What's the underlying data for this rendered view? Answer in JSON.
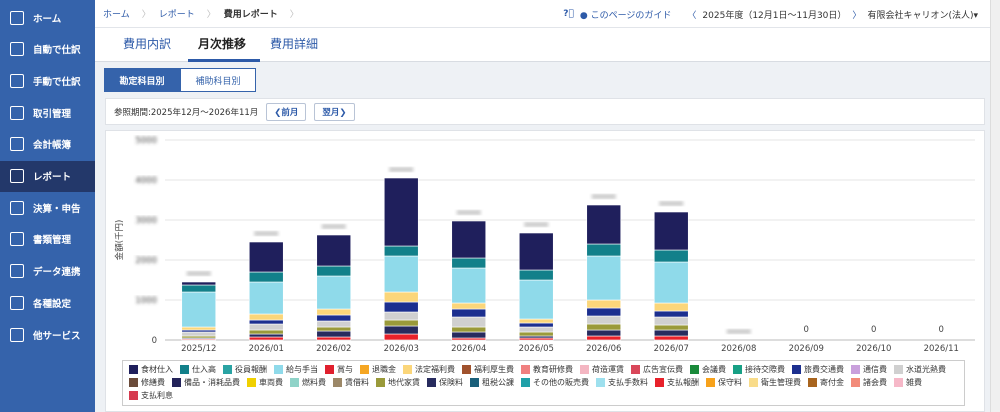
{
  "sidebar": {
    "items": [
      "ホーム",
      "自動で仕訳",
      "手動で仕訳",
      "取引管理",
      "会計帳簿",
      "レポート",
      "決算・申告",
      "書類管理",
      "データ連携",
      "各種設定",
      "他サービス"
    ],
    "active": 5
  },
  "breadcrumb": [
    "ホーム",
    "レポート",
    "費用レポート"
  ],
  "header": {
    "guide": "このページのガイド",
    "period": "2025年度（12月1日〜11月30日）",
    "company": "有限会社キャリオン(法人)"
  },
  "tabs": {
    "items": [
      "費用内訳",
      "月次推移",
      "費用詳細"
    ],
    "active": 1
  },
  "subtabs": {
    "items": [
      "勘定科目別",
      "補助科目別"
    ],
    "active": 0
  },
  "period_bar": {
    "label": "参照期間:2025年12月〜2026年11月",
    "prev": "前月",
    "next": "翌月"
  },
  "chart_data": {
    "type": "bar",
    "stacked": true,
    "y_label": "金額(千円)",
    "categories": [
      "2025/12",
      "2026/01",
      "2026/02",
      "2026/03",
      "2026/04",
      "2026/05",
      "2026/06",
      "2026/07",
      "2026/08",
      "2026/09",
      "2026/10",
      "2026/11"
    ],
    "ylim": [
      0,
      5000
    ],
    "yticks": [
      0,
      1000,
      2000,
      3000,
      4000,
      5000
    ],
    "grid": true,
    "total_labels": [
      null,
      null,
      null,
      null,
      null,
      null,
      null,
      null,
      null,
      0,
      0,
      0
    ],
    "series": [
      {
        "name": "食材仕入",
        "color": "#1f1f5c",
        "values": [
          75,
          750,
          775,
          1700,
          925,
          925,
          975,
          950,
          0,
          0,
          0,
          0
        ]
      },
      {
        "name": "仕入高",
        "color": "#12808a",
        "values": [
          175,
          250,
          250,
          250,
          250,
          250,
          300,
          300,
          0,
          0,
          0,
          0
        ]
      },
      {
        "name": "役員報酬",
        "color": "#2aa3a3",
        "values": [
          0,
          0,
          0,
          0,
          0,
          0,
          0,
          0,
          0,
          0,
          0,
          0
        ]
      },
      {
        "name": "給与手当",
        "color": "#8fdaea",
        "values": [
          875,
          800,
          825,
          900,
          875,
          975,
          1100,
          1025,
          0,
          0,
          0,
          0
        ]
      },
      {
        "name": "賞与",
        "color": "#e0202e",
        "values": [
          0,
          0,
          0,
          0,
          0,
          0,
          0,
          0,
          0,
          0,
          0,
          0
        ]
      },
      {
        "name": "退職金",
        "color": "#f5a623",
        "values": [
          0,
          0,
          0,
          0,
          0,
          0,
          0,
          0,
          0,
          0,
          0,
          0
        ]
      },
      {
        "name": "法定福利費",
        "color": "#fbd67a",
        "values": [
          75,
          150,
          150,
          250,
          150,
          100,
          200,
          200,
          0,
          0,
          0,
          0
        ]
      },
      {
        "name": "福利厚生費",
        "color": "#a0522d",
        "values": [
          0,
          0,
          0,
          0,
          0,
          0,
          0,
          0,
          0,
          0,
          0,
          0
        ]
      },
      {
        "name": "教育研修費",
        "color": "#f08080",
        "values": [
          0,
          0,
          0,
          0,
          0,
          0,
          0,
          0,
          0,
          0,
          0,
          0
        ]
      },
      {
        "name": "荷造運賃",
        "color": "#f4b6c2",
        "values": [
          0,
          0,
          0,
          0,
          0,
          0,
          0,
          0,
          0,
          0,
          0,
          0
        ]
      },
      {
        "name": "広告宣伝費",
        "color": "#d9475a",
        "values": [
          0,
          0,
          0,
          0,
          0,
          0,
          0,
          0,
          0,
          0,
          0,
          0
        ]
      },
      {
        "name": "会議費",
        "color": "#1a8a3a",
        "values": [
          0,
          0,
          0,
          0,
          0,
          0,
          0,
          0,
          0,
          0,
          0,
          0
        ]
      },
      {
        "name": "接待交際費",
        "color": "#17a085",
        "values": [
          0,
          0,
          0,
          0,
          0,
          0,
          0,
          0,
          0,
          0,
          0,
          0
        ]
      },
      {
        "name": "旅費交通費",
        "color": "#1c2f8f",
        "values": [
          50,
          100,
          150,
          250,
          200,
          100,
          200,
          150,
          0,
          0,
          0,
          0
        ]
      },
      {
        "name": "通信費",
        "color": "#c9a0dc",
        "values": [
          0,
          0,
          0,
          0,
          0,
          0,
          0,
          0,
          0,
          0,
          0,
          0
        ]
      },
      {
        "name": "水道光熱費",
        "color": "#d0d0d0",
        "values": [
          100,
          150,
          150,
          200,
          250,
          125,
          200,
          200,
          0,
          0,
          0,
          0
        ]
      },
      {
        "name": "修繕費",
        "color": "#6b4b3a",
        "values": [
          0,
          0,
          0,
          0,
          0,
          0,
          0,
          0,
          0,
          0,
          0,
          0
        ]
      },
      {
        "name": "備品・消耗品費",
        "color": "#23235a",
        "values": [
          0,
          0,
          0,
          0,
          0,
          0,
          0,
          0,
          0,
          0,
          0,
          0
        ]
      },
      {
        "name": "車両費",
        "color": "#f0d000",
        "values": [
          0,
          0,
          0,
          0,
          0,
          0,
          0,
          0,
          0,
          0,
          0,
          0
        ]
      },
      {
        "name": "燃料費",
        "color": "#8fd3c8",
        "values": [
          0,
          0,
          0,
          0,
          0,
          0,
          0,
          0,
          0,
          0,
          0,
          0
        ]
      },
      {
        "name": "賃借料",
        "color": "#9c8868",
        "values": [
          0,
          0,
          0,
          0,
          0,
          0,
          0,
          0,
          0,
          0,
          0,
          0
        ]
      },
      {
        "name": "地代家賃",
        "color": "#9a9a3a",
        "values": [
          50,
          100,
          100,
          150,
          125,
          100,
          150,
          125,
          0,
          0,
          0,
          0
        ]
      },
      {
        "name": "保険料",
        "color": "#272b5e",
        "values": [
          25,
          75,
          150,
          200,
          150,
          50,
          150,
          150,
          0,
          0,
          0,
          0
        ]
      },
      {
        "name": "租税公課",
        "color": "#1a5f7a",
        "values": [
          0,
          0,
          0,
          0,
          0,
          0,
          0,
          0,
          0,
          0,
          0,
          0
        ]
      },
      {
        "name": "その他の販売費",
        "color": "#20a0a8",
        "values": [
          0,
          0,
          0,
          0,
          0,
          0,
          0,
          0,
          0,
          0,
          0,
          0
        ]
      },
      {
        "name": "支払手数料",
        "color": "#9ee0ee",
        "values": [
          0,
          0,
          0,
          0,
          0,
          0,
          0,
          0,
          0,
          0,
          0,
          0
        ]
      },
      {
        "name": "支払報酬",
        "color": "#e8212a",
        "values": [
          25,
          75,
          75,
          150,
          50,
          50,
          100,
          100,
          0,
          0,
          0,
          0
        ]
      },
      {
        "name": "保守料",
        "color": "#f7a21b",
        "values": [
          0,
          0,
          0,
          0,
          0,
          0,
          0,
          0,
          0,
          0,
          0,
          0
        ]
      },
      {
        "name": "衛生管理費",
        "color": "#f9dc8a",
        "values": [
          0,
          0,
          0,
          0,
          0,
          0,
          0,
          0,
          0,
          0,
          0,
          0
        ]
      },
      {
        "name": "寄付金",
        "color": "#a8641e",
        "values": [
          0,
          0,
          0,
          0,
          0,
          0,
          0,
          0,
          0,
          0,
          0,
          0
        ]
      },
      {
        "name": "諸会費",
        "color": "#f28b7a",
        "values": [
          0,
          0,
          0,
          0,
          0,
          0,
          0,
          0,
          0,
          0,
          0,
          0
        ]
      },
      {
        "name": "雑費",
        "color": "#f6b8c8",
        "values": [
          0,
          0,
          0,
          0,
          0,
          0,
          0,
          0,
          0,
          0,
          0,
          0
        ]
      },
      {
        "name": "支払利息",
        "color": "#d63a4f",
        "values": [
          0,
          0,
          0,
          0,
          0,
          0,
          0,
          0,
          0,
          0,
          0,
          0
        ]
      }
    ]
  }
}
